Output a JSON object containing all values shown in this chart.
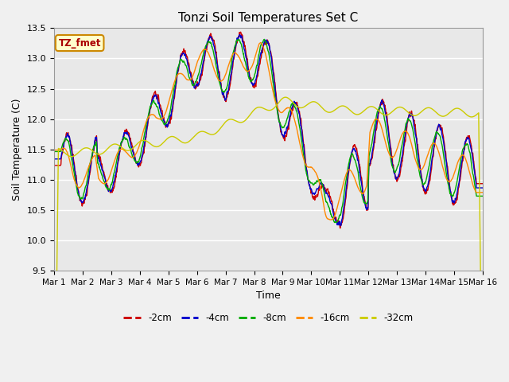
{
  "title": "Tonzi Soil Temperatures Set C",
  "xlabel": "Time",
  "ylabel": "Soil Temperature (C)",
  "ylim": [
    9.5,
    13.5
  ],
  "xlim": [
    0,
    360
  ],
  "x_tick_labels": [
    "Mar 1",
    "Mar 2",
    "Mar 3",
    "Mar 4",
    "Mar 5",
    "Mar 6",
    "Mar 7",
    "Mar 8",
    "Mar 9",
    "Mar 10",
    "Mar 11",
    "Mar 12",
    "Mar 13",
    "Mar 14",
    "Mar 15",
    "Mar 16"
  ],
  "x_tick_positions": [
    0,
    24,
    48,
    72,
    96,
    120,
    144,
    168,
    192,
    216,
    240,
    264,
    288,
    312,
    336,
    360
  ],
  "series_colors": [
    "#cc0000",
    "#0000cc",
    "#00aa00",
    "#ff8800",
    "#cccc00"
  ],
  "series_labels": [
    "-2cm",
    "-4cm",
    "-8cm",
    "-16cm",
    "-32cm"
  ],
  "bg_color": "#e8e8e8",
  "grid_color": "#ffffff",
  "annotation_text": "TZ_fmet",
  "annotation_bg": "#ffffcc",
  "annotation_border": "#cc8800",
  "fig_width": 6.4,
  "fig_height": 4.8,
  "dpi": 100
}
